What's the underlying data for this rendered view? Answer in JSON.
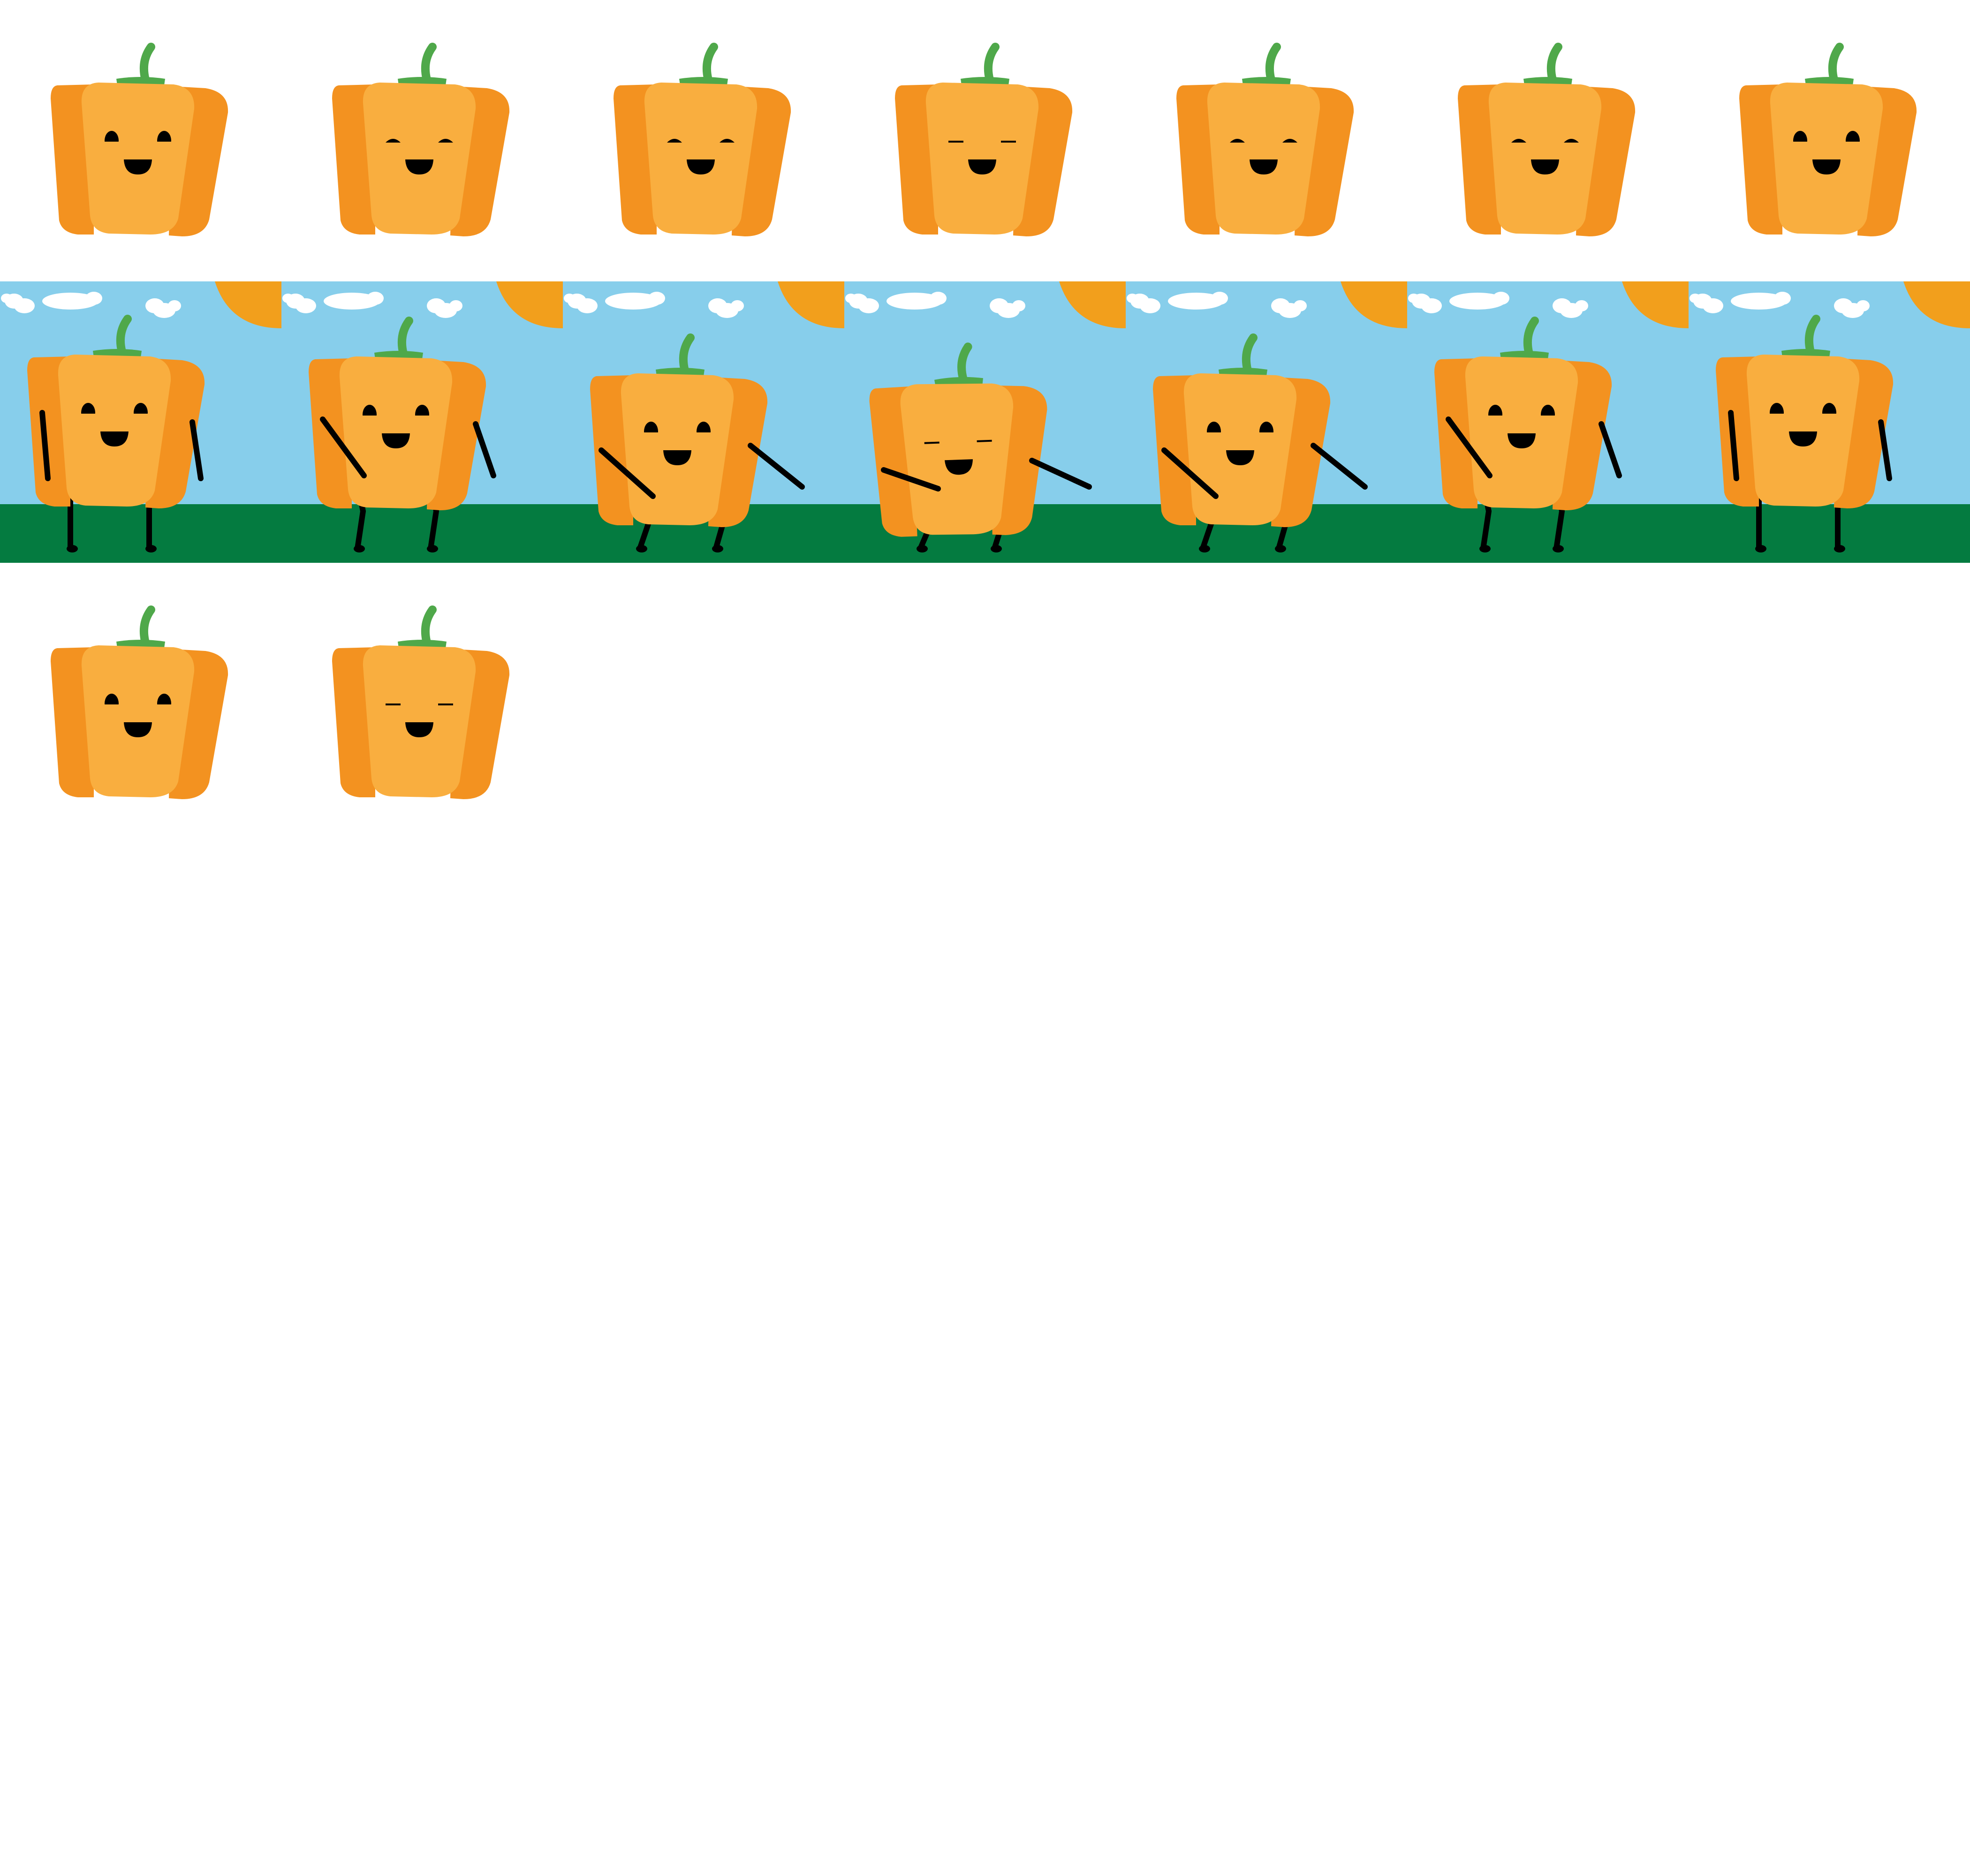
{
  "sprite_sheet": {
    "colors": {
      "pepper_dark": "#F39220",
      "pepper_light": "#F9AE3F",
      "stem": "#4FA84A",
      "sky": "#87CEEB",
      "ground": "#047B40",
      "sun": "#F29F1C",
      "cloud": "#FFFFFF",
      "limb": "#000000",
      "face": "#000000"
    },
    "icons": {
      "head": "bell-pepper-head-icon",
      "walker": "bell-pepper-walker-icon"
    },
    "head_row": {
      "faces": [
        "open",
        "half",
        "half",
        "closed",
        "half",
        "half",
        "open"
      ]
    },
    "walk_row": {
      "faces": [
        "open",
        "open",
        "open",
        "closed",
        "open",
        "open",
        "open"
      ],
      "poses": [
        "stand",
        "step",
        "reach",
        "lean",
        "reach",
        "step",
        "stand"
      ]
    },
    "extra_row": {
      "faces": [
        "open",
        "closed"
      ]
    }
  }
}
